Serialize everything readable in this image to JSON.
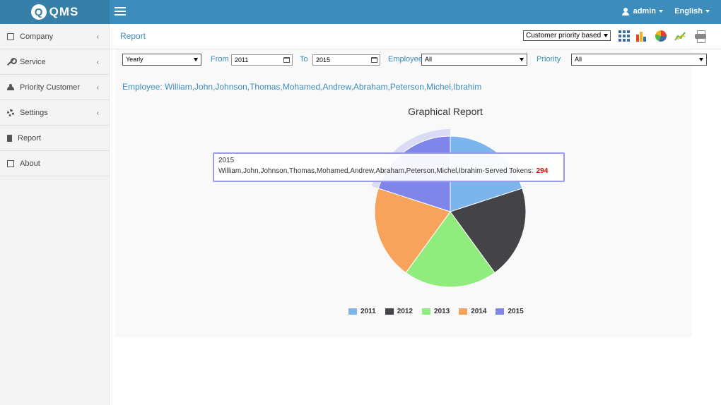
{
  "header": {
    "logo_mark": "Q",
    "logo_text": "QMS",
    "user_label": "admin",
    "language_label": "English"
  },
  "sidebar": {
    "items": [
      {
        "label": "Company",
        "icon": "building-icon",
        "has_submenu": true
      },
      {
        "label": "Service",
        "icon": "wrench-icon",
        "has_submenu": true
      },
      {
        "label": "Priority Customer",
        "icon": "users-icon",
        "has_submenu": true
      },
      {
        "label": "Settings",
        "icon": "gear-icon",
        "has_submenu": true
      },
      {
        "label": "Report",
        "icon": "file-icon",
        "has_submenu": false
      },
      {
        "label": "About",
        "icon": "edit-icon",
        "has_submenu": false
      }
    ]
  },
  "page": {
    "title": "Report",
    "report_type_selected": "Customer priority based"
  },
  "filters": {
    "period": "Yearly",
    "from_label": "From",
    "from_value": "2011",
    "to_label": "To",
    "to_value": "2015",
    "employee_label": "Employee",
    "employee_value": "All",
    "priority_label": "Priority",
    "priority_value": "All"
  },
  "employee_summary": "Employee: William,John,Johnson,Thomas,Mohamed,Andrew,Abraham,Peterson,Michel,Ibrahim",
  "chart_data": {
    "type": "pie",
    "title": "Graphical Report",
    "categories": [
      "2011",
      "2012",
      "2013",
      "2014",
      "2015"
    ],
    "values": [
      294,
      294,
      294,
      294,
      294
    ],
    "colors": [
      "#7cb5ec",
      "#434348",
      "#90ed7d",
      "#f7a35c",
      "#8085e9"
    ],
    "legend_placement": "bottom",
    "highlighted_category": "2015",
    "tooltip": {
      "header": "2015",
      "series_label": "William,John,Johnson,Thomas,Mohamed,Andrew,Abraham,Peterson,Michel,Ibrahim-Served Tokens:",
      "value": "294"
    }
  }
}
